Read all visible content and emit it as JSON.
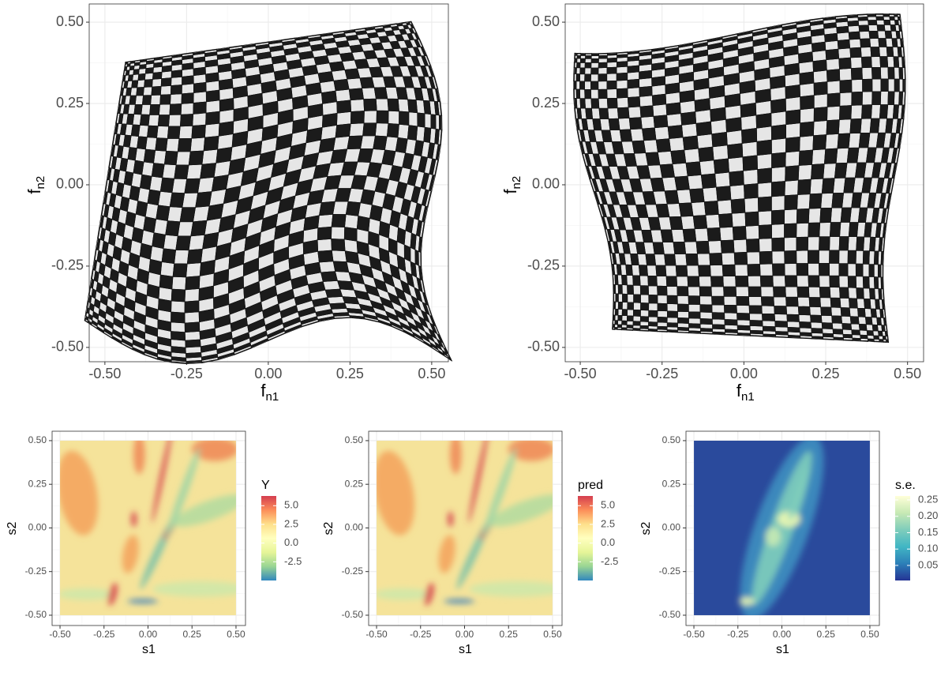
{
  "chart_data": [
    {
      "type": "mesh",
      "xlabel": "f",
      "xlabel_sub": "n1",
      "ylabel": "f",
      "ylabel_sub": "n2",
      "xlim": [
        -0.548,
        0.551
      ],
      "ylim": [
        -0.544,
        0.556
      ],
      "grid": true,
      "xticks": [
        {
          "value": -0.5,
          "label": "-0.50"
        },
        -0.25,
        {
          "value": 0,
          "label": "0.00"
        },
        0.25,
        {
          "value": 0.5,
          "label": "0.50"
        }
      ],
      "yticks": [
        {
          "value": -0.5,
          "label": "-0.50"
        },
        -0.25,
        {
          "value": 0,
          "label": "0.00"
        },
        0.25,
        {
          "value": 0.5,
          "label": "0.50"
        }
      ]
    },
    {
      "type": "mesh",
      "xlabel": "f",
      "xlabel_sub": "n1",
      "ylabel": "f",
      "ylabel_sub": "n2",
      "xlim": [
        -0.546,
        0.549
      ],
      "ylim": [
        -0.544,
        0.556
      ],
      "grid": true,
      "xticks": [
        {
          "value": -0.5,
          "label": "-0.50"
        },
        -0.25,
        {
          "value": 0,
          "label": "0.00"
        },
        0.25,
        {
          "value": 0.5,
          "label": "0.50"
        }
      ],
      "yticks": [
        {
          "value": -0.5,
          "label": "-0.50"
        },
        -0.25,
        {
          "value": 0,
          "label": "0.00"
        },
        0.25,
        {
          "value": 0.5,
          "label": "0.50"
        }
      ]
    },
    {
      "type": "heatmap",
      "xlabel": "s1",
      "ylabel": "s2",
      "legend_title": "Y",
      "xlim": [
        -0.545,
        0.554
      ],
      "ylim": [
        -0.559,
        0.554
      ],
      "grid": true,
      "xticks": [
        {
          "value": -0.5,
          "label": "-0.50"
        },
        -0.25,
        {
          "value": 0,
          "label": "0.00"
        },
        0.25,
        {
          "value": 0.5,
          "label": "0.50"
        }
      ],
      "yticks": [
        {
          "value": -0.5,
          "label": "-0.50"
        },
        -0.25,
        {
          "value": 0,
          "label": "0.00"
        },
        0.25,
        {
          "value": 0.5,
          "label": "0.50"
        }
      ],
      "colors": [
        "#3288bd",
        "#99d594",
        "#e6f598",
        "#ffffbf",
        "#fee08b",
        "#fc8d59",
        "#d53e4f"
      ],
      "colorlim": [
        -5.0,
        6.3
      ],
      "colorticks": [
        {
          "value": 5,
          "label": "5.0"
        },
        2.5,
        {
          "value": 0,
          "label": "0.0"
        },
        -2.5
      ]
    },
    {
      "type": "heatmap",
      "xlabel": "s1",
      "ylabel": "s2",
      "legend_title": "pred",
      "xlim": [
        -0.545,
        0.554
      ],
      "ylim": [
        -0.559,
        0.554
      ],
      "grid": true,
      "xticks": [
        {
          "value": -0.5,
          "label": "-0.50"
        },
        -0.25,
        {
          "value": 0,
          "label": "0.00"
        },
        0.25,
        {
          "value": 0.5,
          "label": "0.50"
        }
      ],
      "yticks": [
        {
          "value": -0.5,
          "label": "-0.50"
        },
        -0.25,
        {
          "value": 0,
          "label": "0.00"
        },
        0.25,
        {
          "value": 0.5,
          "label": "0.50"
        }
      ],
      "colors": [
        "#3288bd",
        "#99d594",
        "#e6f598",
        "#ffffbf",
        "#fee08b",
        "#fc8d59",
        "#d53e4f"
      ],
      "colorlim": [
        -5.0,
        6.3
      ],
      "colorticks": [
        {
          "value": 5,
          "label": "5.0"
        },
        2.5,
        {
          "value": 0,
          "label": "0.0"
        },
        -2.5
      ]
    },
    {
      "type": "heatmap",
      "xlabel": "s1",
      "ylabel": "s2",
      "legend_title": "s.e.",
      "xlim": [
        -0.545,
        0.554
      ],
      "ylim": [
        -0.559,
        0.554
      ],
      "grid": true,
      "xticks": [
        {
          "value": -0.5,
          "label": "-0.50"
        },
        -0.25,
        {
          "value": 0,
          "label": "0.00"
        },
        0.25,
        {
          "value": 0.5,
          "label": "0.50"
        }
      ],
      "yticks": [
        {
          "value": -0.5,
          "label": "-0.50"
        },
        -0.25,
        {
          "value": 0,
          "label": "0.00"
        },
        0.25,
        {
          "value": 0.5,
          "label": "0.50"
        }
      ],
      "colors": [
        "#253494",
        "#2c7fb8",
        "#41b6c4",
        "#7fcdbb",
        "#c7e9b4",
        "#ffffd9"
      ],
      "colorlim": [
        0.004,
        0.262
      ],
      "colorticks": [
        0.25,
        {
          "value": 0.2,
          "label": "0.20"
        },
        0.15,
        {
          "value": 0.1,
          "label": "0.10"
        },
        0.05
      ]
    }
  ]
}
